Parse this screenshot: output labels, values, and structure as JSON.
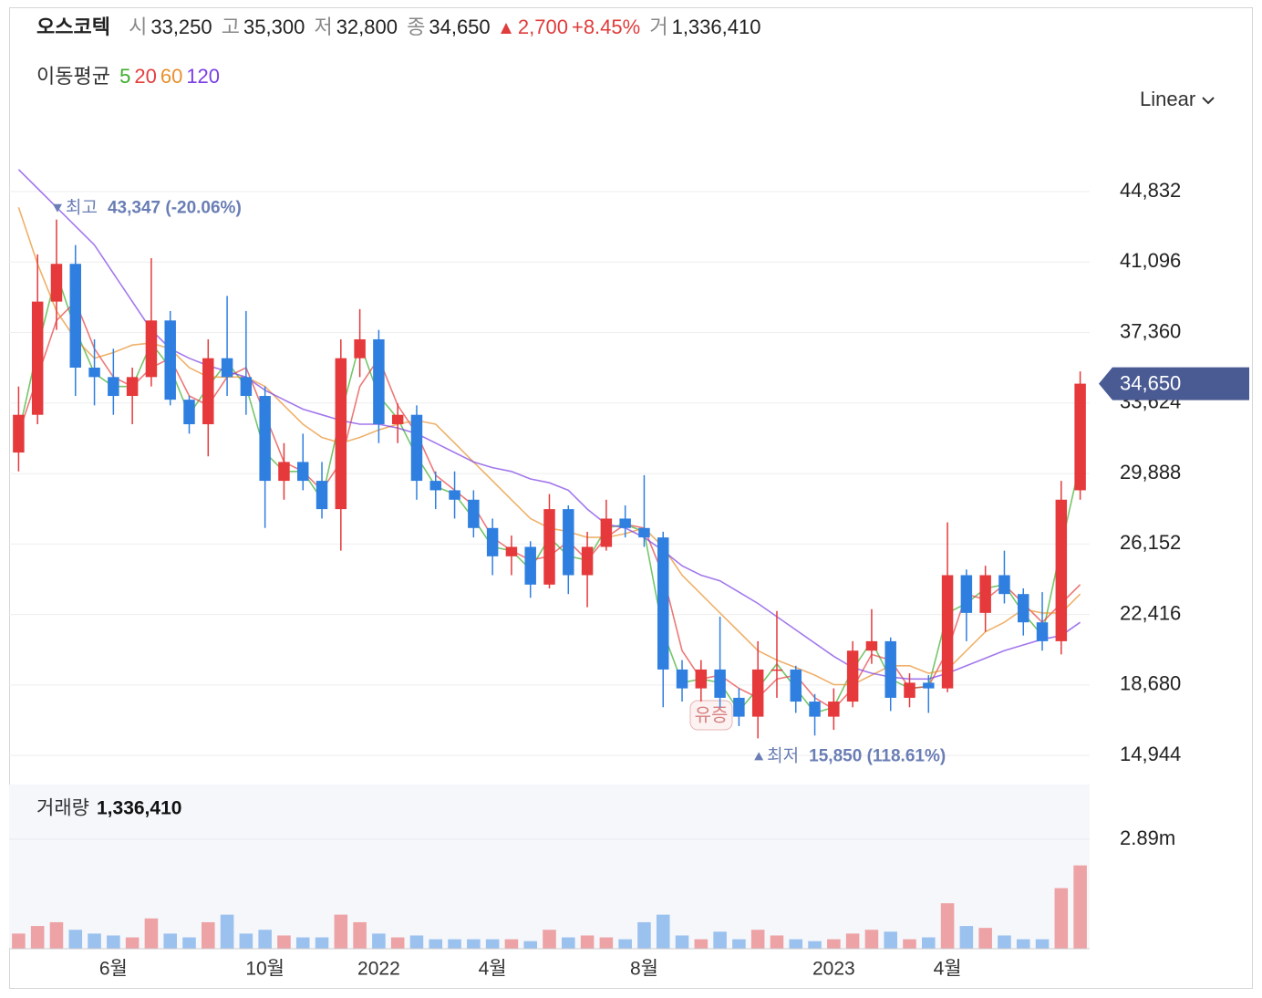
{
  "chart_data": {
    "type": "candlestick",
    "title": "오스코텍",
    "header": [
      {
        "label": "시",
        "value": "33,250"
      },
      {
        "label": "고",
        "value": "35,300"
      },
      {
        "label": "저",
        "value": "32,800"
      },
      {
        "label": "종",
        "value": "34,650"
      }
    ],
    "change": {
      "value": "2,700",
      "percent": "+8.45%"
    },
    "trade_volume": {
      "label": "거",
      "value": "1,336,410"
    },
    "ma_label": "이동평균",
    "scale": "Linear",
    "grid": true,
    "up_color": "#e5393b",
    "down_color": "#2f7fe0",
    "categories": [
      null,
      null,
      null,
      null,
      null,
      "6월",
      null,
      null,
      null,
      null,
      null,
      null,
      null,
      "10월",
      null,
      null,
      null,
      null,
      null,
      "2022",
      null,
      null,
      null,
      null,
      null,
      "4월",
      null,
      null,
      null,
      null,
      null,
      null,
      null,
      "8월",
      null,
      null,
      null,
      null,
      null,
      null,
      null,
      null,
      null,
      "2023",
      null,
      null,
      null,
      null,
      null,
      "4월",
      null,
      null,
      null,
      null,
      null,
      null,
      null
    ],
    "open": [
      31000,
      33000,
      39000,
      41000,
      35500,
      35000,
      34000,
      35000,
      38000,
      33800,
      32500,
      36000,
      35000,
      34000,
      29500,
      30500,
      29500,
      28000,
      36000,
      37000,
      32500,
      33000,
      29500,
      29000,
      28500,
      27000,
      25500,
      26000,
      24000,
      28000,
      24500,
      26000,
      27500,
      27000,
      26500,
      19500,
      18500,
      19500,
      18000,
      17000,
      19500,
      19500,
      17800,
      17000,
      17800,
      20500,
      21000,
      18000,
      18800,
      18500,
      24500,
      22500,
      24500,
      23500,
      22000,
      21000,
      29000
    ],
    "high": [
      34500,
      41500,
      43347,
      42000,
      37000,
      36500,
      35500,
      41300,
      38500,
      34000,
      37000,
      39300,
      38500,
      34500,
      31500,
      32000,
      30500,
      37000,
      38600,
      37500,
      33600,
      33500,
      30000,
      30000,
      29000,
      27500,
      26600,
      26300,
      28800,
      28200,
      26800,
      28500,
      28200,
      29800,
      26800,
      20000,
      20000,
      22300,
      18500,
      21000,
      22600,
      19700,
      18200,
      18500,
      21000,
      22700,
      21200,
      19300,
      19200,
      27300,
      24800,
      25000,
      25800,
      23800,
      23600,
      29500,
      35300
    ],
    "low": [
      30000,
      32500,
      37500,
      34000,
      33500,
      33000,
      32500,
      34500,
      33500,
      32000,
      30800,
      34000,
      33000,
      27000,
      28500,
      29000,
      27500,
      25800,
      35000,
      31500,
      31500,
      28500,
      28000,
      27500,
      26500,
      24500,
      24500,
      23300,
      23800,
      23500,
      22800,
      25800,
      26500,
      26000,
      17500,
      17800,
      17800,
      17500,
      16500,
      15850,
      18000,
      17200,
      16000,
      16300,
      17500,
      19800,
      17300,
      17500,
      17200,
      18300,
      21000,
      21500,
      23000,
      21300,
      20500,
      20300,
      28500
    ],
    "close": [
      33000,
      39000,
      41000,
      35500,
      35000,
      34000,
      35000,
      38000,
      33800,
      32500,
      36000,
      35000,
      34000,
      29500,
      30500,
      29500,
      28000,
      36000,
      37000,
      32500,
      33000,
      29500,
      29000,
      28500,
      27000,
      25500,
      26000,
      24000,
      28000,
      24500,
      26000,
      27500,
      27000,
      26500,
      19500,
      18500,
      19500,
      18000,
      17000,
      19500,
      19500,
      17800,
      17000,
      17800,
      20500,
      21000,
      18000,
      18800,
      18500,
      24500,
      22500,
      24500,
      23500,
      22000,
      21000,
      28500,
      34650
    ],
    "series": [
      {
        "name": "5",
        "color": "#3cae2b",
        "values": [
          32000,
          36500,
          40500,
          37500,
          35200,
          34500,
          34500,
          36800,
          35500,
          33000,
          34500,
          35800,
          34500,
          31000,
          30000,
          30000,
          28500,
          33000,
          36800,
          34000,
          32800,
          30800,
          29200,
          28800,
          27500,
          26000,
          25800,
          24800,
          26500,
          25500,
          25300,
          27000,
          27200,
          26800,
          21500,
          18800,
          19000,
          18800,
          17300,
          18500,
          19800,
          18500,
          17200,
          17500,
          19500,
          21000,
          19000,
          18500,
          18600,
          22500,
          23000,
          23800,
          24000,
          22500,
          21300,
          26000,
          30500
        ]
      },
      {
        "name": "20",
        "color": "#e53e3e",
        "values": [
          32000,
          35000,
          38000,
          39000,
          36500,
          35000,
          34500,
          35500,
          36000,
          34000,
          33500,
          35000,
          35500,
          33000,
          30500,
          30000,
          29000,
          30500,
          34500,
          36000,
          33500,
          32000,
          29800,
          29000,
          28200,
          26500,
          25800,
          25300,
          25500,
          26300,
          25300,
          26500,
          27200,
          27000,
          24500,
          20500,
          19000,
          19200,
          18500,
          18000,
          19000,
          19200,
          18000,
          17400,
          18500,
          20300,
          20000,
          18500,
          18600,
          20500,
          23500,
          23200,
          24000,
          23000,
          22000,
          23000,
          24000
        ]
      },
      {
        "name": "60",
        "color": "#e8902c",
        "values": [
          44000,
          41000,
          38500,
          37000,
          36000,
          36300,
          36700,
          36800,
          36500,
          35500,
          35000,
          35000,
          35000,
          34500,
          33500,
          32500,
          31800,
          31500,
          31800,
          32200,
          32500,
          32700,
          32500,
          31500,
          30500,
          29500,
          28500,
          27500,
          27000,
          26800,
          26500,
          26500,
          26700,
          27000,
          26000,
          24500,
          23500,
          22500,
          21500,
          20500,
          20000,
          19600,
          19200,
          18700,
          18700,
          19200,
          19700,
          19700,
          19300,
          19500,
          20500,
          21500,
          22000,
          22700,
          22500,
          22500,
          23500
        ]
      },
      {
        "name": "120",
        "color": "#7b3fe4",
        "values": [
          46000,
          45000,
          44000,
          43000,
          42000,
          40500,
          39000,
          37500,
          36500,
          36000,
          35600,
          35300,
          35000,
          34300,
          33800,
          33300,
          33000,
          32700,
          32500,
          32500,
          32300,
          32000,
          31500,
          31000,
          30500,
          30200,
          30000,
          29600,
          29400,
          29000,
          28000,
          27200,
          27000,
          26500,
          25800,
          25000,
          24500,
          24200,
          23600,
          23000,
          22300,
          21600,
          20900,
          20200,
          19600,
          19300,
          19100,
          19000,
          19000,
          19300,
          19700,
          20100,
          20500,
          20800,
          21100,
          21300,
          22000
        ]
      }
    ],
    "ylim": [
      13500,
      48700
    ],
    "yticks": [
      {
        "value": 14944,
        "label": "14,944"
      },
      {
        "value": 18680,
        "label": "18,680"
      },
      {
        "value": 22416,
        "label": "22,416"
      },
      {
        "value": 26152,
        "label": "26,152"
      },
      {
        "value": 29888,
        "label": "29,888"
      },
      {
        "value": 33624,
        "label": "33,624"
      },
      {
        "value": 37360,
        "label": "37,360"
      },
      {
        "value": 41096,
        "label": "41,096"
      },
      {
        "value": 44832,
        "label": "44,832"
      }
    ],
    "last_price": {
      "value": 34650,
      "label": "34,650",
      "color": "#4a5b94"
    },
    "high_note": {
      "label": "최고",
      "value_label": "43,347 (-20.06%)"
    },
    "low_note": {
      "label": "최저",
      "value_label": "15,850 (118.61%)"
    },
    "note_color": "#6a7eb5",
    "event_badge": "유증",
    "volume": {
      "label": "거래량",
      "value_label": "1,336,410",
      "values": [
        400000,
        600000,
        700000,
        500000,
        400000,
        350000,
        300000,
        800000,
        400000,
        300000,
        700000,
        900000,
        400000,
        500000,
        350000,
        300000,
        300000,
        900000,
        700000,
        400000,
        300000,
        350000,
        250000,
        250000,
        250000,
        250000,
        250000,
        200000,
        500000,
        300000,
        350000,
        300000,
        250000,
        700000,
        900000,
        350000,
        250000,
        450000,
        250000,
        500000,
        350000,
        250000,
        200000,
        250000,
        400000,
        500000,
        450000,
        250000,
        300000,
        1200000,
        600000,
        550000,
        350000,
        250000,
        250000,
        1600000,
        2200000
      ],
      "ylim": [
        0,
        4335000
      ],
      "yticks": [
        {
          "value": 2890000,
          "label": "2.89m"
        }
      ]
    }
  }
}
